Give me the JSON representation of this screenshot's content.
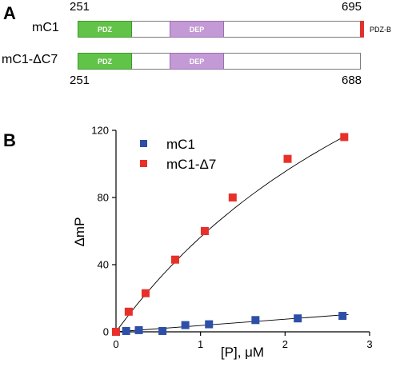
{
  "panel_a": {
    "letter": "A",
    "constructs": [
      {
        "name": "mC1",
        "start_label": "251",
        "end_label": "695",
        "domains": [
          {
            "label": "PDZ",
            "color": "#62c349"
          },
          {
            "label": "DEP",
            "color": "#c39ad6"
          },
          {
            "label": "PDZ-B",
            "color": "#e03131"
          }
        ]
      },
      {
        "name": "mC1-ΔC7",
        "start_label": "251",
        "end_label": "688",
        "domains": [
          {
            "label": "PDZ",
            "color": "#62c349"
          },
          {
            "label": "DEP",
            "color": "#c39ad6"
          }
        ]
      }
    ]
  },
  "panel_b": {
    "letter": "B",
    "chart_data": {
      "type": "scatter",
      "title": "",
      "xlabel": "[P], μM",
      "ylabel": "ΔmP",
      "xlim": [
        0,
        3
      ],
      "ylim": [
        0,
        120
      ],
      "xticks": [
        "0",
        "1",
        "2",
        "3"
      ],
      "yticks": [
        "0",
        "40",
        "80",
        "120"
      ],
      "legend": "top-left",
      "grid": false,
      "series": [
        {
          "name": "mC1",
          "color": "#2e4fa8",
          "x": [
            0.0,
            0.12,
            0.27,
            0.55,
            0.82,
            1.1,
            1.65,
            2.15,
            2.68
          ],
          "y": [
            0.0,
            0.5,
            1.0,
            0.5,
            4.0,
            4.5,
            7.0,
            8.0,
            9.5
          ],
          "fit": "linear"
        },
        {
          "name": "mC1-Δ7",
          "color": "#e8302a",
          "x": [
            0.0,
            0.15,
            0.35,
            0.7,
            1.05,
            1.38,
            2.03,
            2.7
          ],
          "y": [
            0.0,
            12.0,
            23.0,
            43.0,
            60.0,
            80.0,
            103.0,
            116.0
          ],
          "fit": "saturating"
        }
      ]
    }
  }
}
